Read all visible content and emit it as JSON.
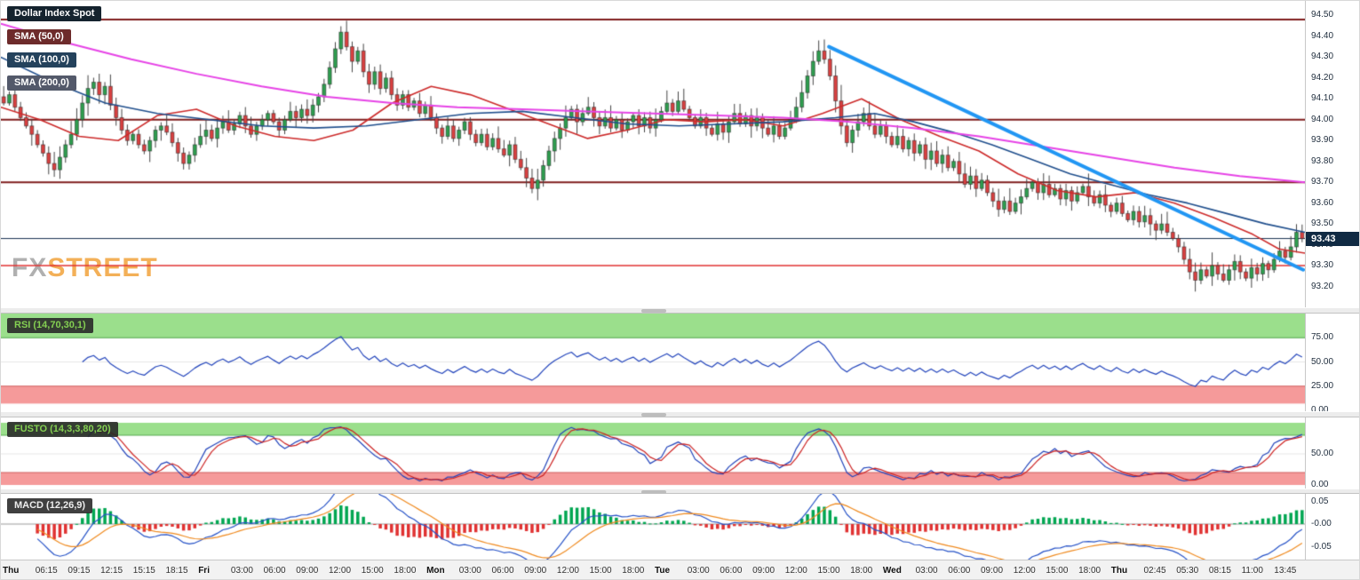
{
  "header": {
    "symbol_label": "Dollar Index Spot"
  },
  "legend": {
    "sma50": "SMA (50,0)",
    "sma100": "SMA (100,0)",
    "sma200": "SMA (200,0)"
  },
  "panels": {
    "rsi": {
      "label": "RSI (14,70,30,1)",
      "ticks": [
        "75.00",
        "50.00",
        "25.00",
        "0.00"
      ]
    },
    "stoch": {
      "label": "FUSTO (14,3,3,80,20)",
      "ticks": [
        "50.00",
        "0.00"
      ]
    },
    "macd": {
      "label": "MACD (12,26,9)",
      "ticks": [
        "0.05",
        "-0.00",
        "-0.05"
      ]
    }
  },
  "watermark": {
    "fx": "FX",
    "street": "STREET"
  },
  "price_badge": "93.43",
  "chart_data": {
    "type": "candlestick",
    "title": "Dollar Index Spot",
    "last_price": 93.43,
    "ylim": [
      93.1,
      94.57
    ],
    "y_ticks": [
      "94.50",
      "94.40",
      "94.30",
      "94.20",
      "94.10",
      "94.00",
      "93.90",
      "93.80",
      "93.70",
      "93.60",
      "93.50",
      "93.40",
      "93.30",
      "93.20"
    ],
    "x_labels": [
      "Thu",
      "06:15",
      "09:15",
      "12:15",
      "15:15",
      "18:15",
      "Fri",
      "03:00",
      "06:00",
      "09:00",
      "12:00",
      "15:00",
      "18:00",
      "Mon",
      "03:00",
      "06:00",
      "09:00",
      "12:00",
      "15:00",
      "18:00",
      "Tue",
      "03:00",
      "06:00",
      "09:00",
      "12:00",
      "15:00",
      "18:00",
      "Wed",
      "03:00",
      "06:00",
      "09:00",
      "12:00",
      "15:00",
      "18:00",
      "Thu",
      "02:45",
      "05:30",
      "08:15",
      "11:00",
      "13:45"
    ],
    "x_day_indices": [
      0,
      6,
      13,
      20,
      27,
      34
    ],
    "closes": [
      94.08,
      94.12,
      94.06,
      94.01,
      93.97,
      93.93,
      93.88,
      93.84,
      93.79,
      93.76,
      93.82,
      93.88,
      93.93,
      94.0,
      94.08,
      94.15,
      94.18,
      94.12,
      94.16,
      94.07,
      94.01,
      93.95,
      93.9,
      93.93,
      93.88,
      93.85,
      93.9,
      93.95,
      93.97,
      93.94,
      93.89,
      93.84,
      93.79,
      93.83,
      93.88,
      93.92,
      93.95,
      93.91,
      93.96,
      93.99,
      93.95,
      93.98,
      94.02,
      93.97,
      93.93,
      93.97,
      94.0,
      94.03,
      93.99,
      93.95,
      94.0,
      94.04,
      94.01,
      94.05,
      94.02,
      94.07,
      94.11,
      94.17,
      94.25,
      94.34,
      94.42,
      94.35,
      94.28,
      94.33,
      94.23,
      94.17,
      94.23,
      94.15,
      94.2,
      94.12,
      94.07,
      94.12,
      94.06,
      94.09,
      94.03,
      94.07,
      94.01,
      93.96,
      93.92,
      93.97,
      93.91,
      93.95,
      93.99,
      93.93,
      93.89,
      93.93,
      93.87,
      93.91,
      93.86,
      93.83,
      93.88,
      93.81,
      93.77,
      93.72,
      93.67,
      93.71,
      93.78,
      93.85,
      93.91,
      93.96,
      94.01,
      94.05,
      93.99,
      94.03,
      94.06,
      94.01,
      93.97,
      94.01,
      93.96,
      94.0,
      93.95,
      93.99,
      94.02,
      93.97,
      94.01,
      93.96,
      94.0,
      94.04,
      94.08,
      94.04,
      94.09,
      94.05,
      94.01,
      93.97,
      94.01,
      93.96,
      93.93,
      93.98,
      93.94,
      93.99,
      94.03,
      93.98,
      94.02,
      93.97,
      94.01,
      93.96,
      93.93,
      93.97,
      93.92,
      93.96,
      94.0,
      94.06,
      94.13,
      94.21,
      94.28,
      94.33,
      94.29,
      94.21,
      94.09,
      93.97,
      93.89,
      93.95,
      93.99,
      94.03,
      93.97,
      93.93,
      93.97,
      93.92,
      93.88,
      93.92,
      93.86,
      93.9,
      93.84,
      93.88,
      93.81,
      93.85,
      93.79,
      93.83,
      93.77,
      93.8,
      93.74,
      93.69,
      93.73,
      93.67,
      93.71,
      93.65,
      93.61,
      93.57,
      93.61,
      93.56,
      93.6,
      93.63,
      93.67,
      93.7,
      93.65,
      93.69,
      93.64,
      93.67,
      93.62,
      93.66,
      93.61,
      93.65,
      93.68,
      93.63,
      93.6,
      93.64,
      93.59,
      93.56,
      93.6,
      93.55,
      93.52,
      93.56,
      93.51,
      93.54,
      93.5,
      93.47,
      93.5,
      93.46,
      93.43,
      93.39,
      93.33,
      93.27,
      93.23,
      93.28,
      93.25,
      93.3,
      93.26,
      93.23,
      93.28,
      93.32,
      93.27,
      93.24,
      93.29,
      93.26,
      93.31,
      93.28,
      93.33,
      93.37,
      93.34,
      93.39,
      93.46,
      93.43
    ],
    "h_lines": [
      {
        "price": 94.48,
        "color": "#7f1d1d",
        "width": 2
      },
      {
        "price": 94.0,
        "color": "#7f1d1d",
        "width": 2
      },
      {
        "price": 93.7,
        "color": "#7f1d1d",
        "width": 2
      },
      {
        "price": 93.3,
        "color": "#e03131",
        "width": 1.5
      },
      {
        "price": 93.43,
        "color": "#16304f",
        "width": 1
      }
    ],
    "trendline": {
      "x1_frac": 0.635,
      "price1": 94.35,
      "x2_frac": 1.0,
      "price2": 93.28,
      "color": "#2196f3",
      "width": 4
    },
    "sma50": {
      "name": "SMA (50,0)",
      "color": "#cc2a2a",
      "points": [
        [
          0.0,
          94.06
        ],
        [
          0.03,
          94.0
        ],
        [
          0.06,
          93.92
        ],
        [
          0.09,
          93.9
        ],
        [
          0.12,
          94.02
        ],
        [
          0.15,
          94.05
        ],
        [
          0.18,
          93.97
        ],
        [
          0.21,
          93.92
        ],
        [
          0.24,
          93.9
        ],
        [
          0.27,
          93.95
        ],
        [
          0.3,
          94.08
        ],
        [
          0.33,
          94.16
        ],
        [
          0.36,
          94.12
        ],
        [
          0.39,
          94.05
        ],
        [
          0.42,
          93.98
        ],
        [
          0.45,
          93.91
        ],
        [
          0.48,
          93.95
        ],
        [
          0.51,
          94.0
        ],
        [
          0.54,
          93.99
        ],
        [
          0.57,
          94.0
        ],
        [
          0.6,
          93.97
        ],
        [
          0.63,
          94.03
        ],
        [
          0.66,
          94.1
        ],
        [
          0.69,
          94.0
        ],
        [
          0.72,
          93.92
        ],
        [
          0.75,
          93.85
        ],
        [
          0.78,
          93.74
        ],
        [
          0.81,
          93.66
        ],
        [
          0.84,
          93.63
        ],
        [
          0.87,
          93.65
        ],
        [
          0.9,
          93.6
        ],
        [
          0.93,
          93.53
        ],
        [
          0.96,
          93.45
        ],
        [
          0.98,
          93.38
        ],
        [
          1.0,
          93.36
        ]
      ]
    },
    "sma100": {
      "name": "SMA (100,0)",
      "color": "#1f4e8c",
      "points": [
        [
          0.0,
          94.3
        ],
        [
          0.04,
          94.18
        ],
        [
          0.08,
          94.08
        ],
        [
          0.12,
          94.03
        ],
        [
          0.16,
          94.0
        ],
        [
          0.2,
          93.97
        ],
        [
          0.24,
          93.96
        ],
        [
          0.28,
          93.97
        ],
        [
          0.32,
          94.0
        ],
        [
          0.36,
          94.03
        ],
        [
          0.4,
          94.04
        ],
        [
          0.44,
          94.01
        ],
        [
          0.48,
          93.98
        ],
        [
          0.52,
          93.97
        ],
        [
          0.56,
          93.98
        ],
        [
          0.6,
          93.99
        ],
        [
          0.64,
          94.01
        ],
        [
          0.67,
          94.03
        ],
        [
          0.7,
          93.99
        ],
        [
          0.73,
          93.94
        ],
        [
          0.76,
          93.88
        ],
        [
          0.79,
          93.81
        ],
        [
          0.82,
          93.74
        ],
        [
          0.85,
          93.69
        ],
        [
          0.88,
          93.64
        ],
        [
          0.91,
          93.6
        ],
        [
          0.94,
          93.55
        ],
        [
          0.97,
          93.5
        ],
        [
          1.0,
          93.46
        ]
      ]
    },
    "sma200": {
      "name": "SMA (200,0)",
      "color": "#e643e6",
      "points": [
        [
          0.0,
          94.46
        ],
        [
          0.05,
          94.37
        ],
        [
          0.1,
          94.29
        ],
        [
          0.15,
          94.22
        ],
        [
          0.2,
          94.16
        ],
        [
          0.25,
          94.11
        ],
        [
          0.3,
          94.08
        ],
        [
          0.35,
          94.06
        ],
        [
          0.4,
          94.05
        ],
        [
          0.45,
          94.04
        ],
        [
          0.5,
          94.03
        ],
        [
          0.55,
          94.02
        ],
        [
          0.6,
          94.01
        ],
        [
          0.65,
          93.99
        ],
        [
          0.7,
          93.96
        ],
        [
          0.75,
          93.92
        ],
        [
          0.8,
          93.87
        ],
        [
          0.85,
          93.82
        ],
        [
          0.9,
          93.77
        ],
        [
          0.95,
          93.73
        ],
        [
          1.0,
          93.7
        ]
      ]
    },
    "indicators": {
      "rsi": {
        "period": 14,
        "levels": [
          75,
          50,
          25,
          0
        ],
        "bands": {
          "green": [
            100,
            75
          ],
          "red": [
            25,
            7
          ]
        }
      },
      "stoch": {
        "params": "14,3,3,80,20",
        "upper": 80,
        "lower": 20,
        "levels": [
          50,
          0
        ]
      },
      "macd": {
        "params": "12,26,9",
        "ylim": [
          -0.0784,
          0.0667
        ],
        "levels": [
          0.05,
          0,
          -0.05
        ]
      }
    },
    "colors": {
      "up": "#2e9e4f",
      "down": "#d94040",
      "wick": "#444444",
      "band_green": "#9bdf8c",
      "band_green_edge": "#55a84f",
      "band_red": "#f59a9a",
      "band_red_edge": "#d06060",
      "rsi_line": "#2244bb",
      "stoch_k": "#2244bb",
      "stoch_d": "#cc2222",
      "macd_line": "#2753c7",
      "macd_signal": "#ef8a1f",
      "hist_up": "#00a651",
      "hist_down": "#e03131",
      "mid_grid": "#e6e6e6",
      "zero_line": "#9a9a9a"
    }
  }
}
